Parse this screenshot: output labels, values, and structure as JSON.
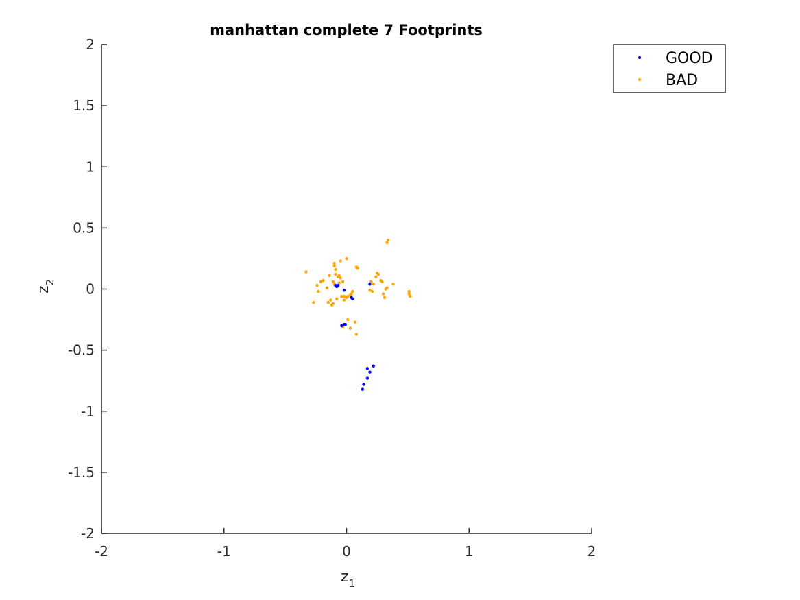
{
  "chart_data": {
    "type": "scatter",
    "title": "manhattan complete 7 Footprints",
    "xlabel": "z",
    "xlabel_sub": "1",
    "ylabel": "z",
    "ylabel_sub": "2",
    "xlim": [
      -2,
      2
    ],
    "ylim": [
      -2,
      2
    ],
    "x_ticks": [
      -2,
      -1,
      0,
      1,
      2
    ],
    "x_tick_labels": [
      "-2",
      "-1",
      "0",
      "1",
      "2"
    ],
    "y_ticks": [
      -2,
      -1.5,
      -1,
      -0.5,
      0,
      0.5,
      1,
      1.5,
      2
    ],
    "y_tick_labels": [
      "-2",
      "-1.5",
      "-1",
      "-0.5",
      "0",
      "0.5",
      "1",
      "1.5",
      "2"
    ],
    "grid": false,
    "legend_position": "top-right",
    "series": [
      {
        "name": "GOOD",
        "color": "#0000ff",
        "points": [
          [
            -0.09,
            0.03
          ],
          [
            -0.08,
            0.02
          ],
          [
            -0.07,
            0.03
          ],
          [
            -0.02,
            -0.01
          ],
          [
            0.04,
            -0.07
          ],
          [
            0.05,
            -0.08
          ],
          [
            0.19,
            0.04
          ],
          [
            -0.04,
            -0.3
          ],
          [
            -0.02,
            -0.29
          ],
          [
            -0.01,
            -0.29
          ],
          [
            0.17,
            -0.65
          ],
          [
            0.19,
            -0.68
          ],
          [
            0.22,
            -0.63
          ],
          [
            0.17,
            -0.73
          ],
          [
            0.14,
            -0.78
          ],
          [
            0.13,
            -0.82
          ]
        ]
      },
      {
        "name": "BAD",
        "color": "#ffa500",
        "points": [
          [
            -0.33,
            0.14
          ],
          [
            -0.27,
            -0.11
          ],
          [
            -0.24,
            0.03
          ],
          [
            -0.23,
            -0.02
          ],
          [
            -0.21,
            0.06
          ],
          [
            -0.19,
            0.07
          ],
          [
            -0.16,
            0.01
          ],
          [
            -0.15,
            -0.11
          ],
          [
            -0.14,
            0.11
          ],
          [
            -0.13,
            -0.09
          ],
          [
            -0.12,
            -0.13
          ],
          [
            -0.11,
            -0.12
          ],
          [
            -0.11,
            0.06
          ],
          [
            -0.1,
            0.04
          ],
          [
            -0.1,
            0.19
          ],
          [
            -0.1,
            0.21
          ],
          [
            -0.09,
            0.16
          ],
          [
            -0.09,
            0.12
          ],
          [
            -0.08,
            -0.08
          ],
          [
            -0.07,
            0.1
          ],
          [
            -0.06,
            0.05
          ],
          [
            -0.06,
            0.11
          ],
          [
            -0.05,
            0.23
          ],
          [
            -0.05,
            0.09
          ],
          [
            -0.04,
            -0.06
          ],
          [
            -0.03,
            0.06
          ],
          [
            -0.02,
            -0.06
          ],
          [
            -0.02,
            -0.09
          ],
          [
            0.0,
            0.25
          ],
          [
            0.0,
            -0.07
          ],
          [
            0.01,
            -0.06
          ],
          [
            0.03,
            -0.05
          ],
          [
            0.04,
            -0.04
          ],
          [
            0.05,
            -0.02
          ],
          [
            0.08,
            0.18
          ],
          [
            0.09,
            0.17
          ],
          [
            -0.03,
            -0.31
          ],
          [
            0.01,
            -0.25
          ],
          [
            0.03,
            -0.32
          ],
          [
            0.07,
            -0.27
          ],
          [
            0.08,
            -0.37
          ],
          [
            0.2,
            0.06
          ],
          [
            0.19,
            -0.01
          ],
          [
            0.21,
            -0.02
          ],
          [
            0.22,
            0.04
          ],
          [
            0.24,
            0.1
          ],
          [
            0.25,
            0.13
          ],
          [
            0.26,
            0.12
          ],
          [
            0.28,
            0.07
          ],
          [
            0.29,
            0.06
          ],
          [
            0.31,
            -0.07
          ],
          [
            0.32,
            0.0
          ],
          [
            0.33,
            0.01
          ],
          [
            0.33,
            0.38
          ],
          [
            0.34,
            0.4
          ],
          [
            0.38,
            0.04
          ],
          [
            0.51,
            -0.02
          ],
          [
            0.51,
            -0.04
          ],
          [
            0.52,
            -0.06
          ],
          [
            0.3,
            -0.04
          ]
        ]
      }
    ]
  }
}
